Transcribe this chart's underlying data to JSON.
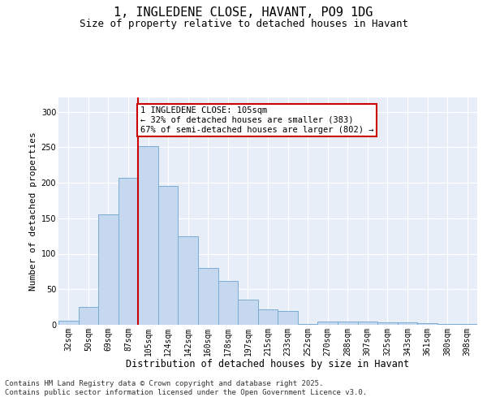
{
  "title": "1, INGLEDENE CLOSE, HAVANT, PO9 1DG",
  "subtitle": "Size of property relative to detached houses in Havant",
  "xlabel": "Distribution of detached houses by size in Havant",
  "ylabel": "Number of detached properties",
  "categories": [
    "32sqm",
    "50sqm",
    "69sqm",
    "87sqm",
    "105sqm",
    "124sqm",
    "142sqm",
    "160sqm",
    "178sqm",
    "197sqm",
    "215sqm",
    "233sqm",
    "252sqm",
    "270sqm",
    "288sqm",
    "307sqm",
    "325sqm",
    "343sqm",
    "361sqm",
    "380sqm",
    "398sqm"
  ],
  "values": [
    6,
    25,
    155,
    207,
    252,
    195,
    125,
    80,
    62,
    35,
    22,
    20,
    1,
    5,
    5,
    5,
    4,
    4,
    2,
    1,
    1
  ],
  "bar_color": "#c5d8f0",
  "bar_edge_color": "#7aadd4",
  "marker_index": 4,
  "marker_color": "#cc0000",
  "annotation_line1": "1 INGLEDENE CLOSE: 105sqm",
  "annotation_line2": "← 32% of detached houses are smaller (383)",
  "annotation_line3": "67% of semi-detached houses are larger (802) →",
  "annotation_box_color": "#ffffff",
  "annotation_box_edge_color": "#cc0000",
  "ylim": [
    0,
    320
  ],
  "yticks": [
    0,
    50,
    100,
    150,
    200,
    250,
    300
  ],
  "background_color": "#e8eef8",
  "grid_color": "#ffffff",
  "footer": "Contains HM Land Registry data © Crown copyright and database right 2025.\nContains public sector information licensed under the Open Government Licence v3.0.",
  "title_fontsize": 11,
  "subtitle_fontsize": 9,
  "xlabel_fontsize": 8.5,
  "ylabel_fontsize": 8,
  "tick_fontsize": 7,
  "annotation_fontsize": 7.5,
  "footer_fontsize": 6.5
}
